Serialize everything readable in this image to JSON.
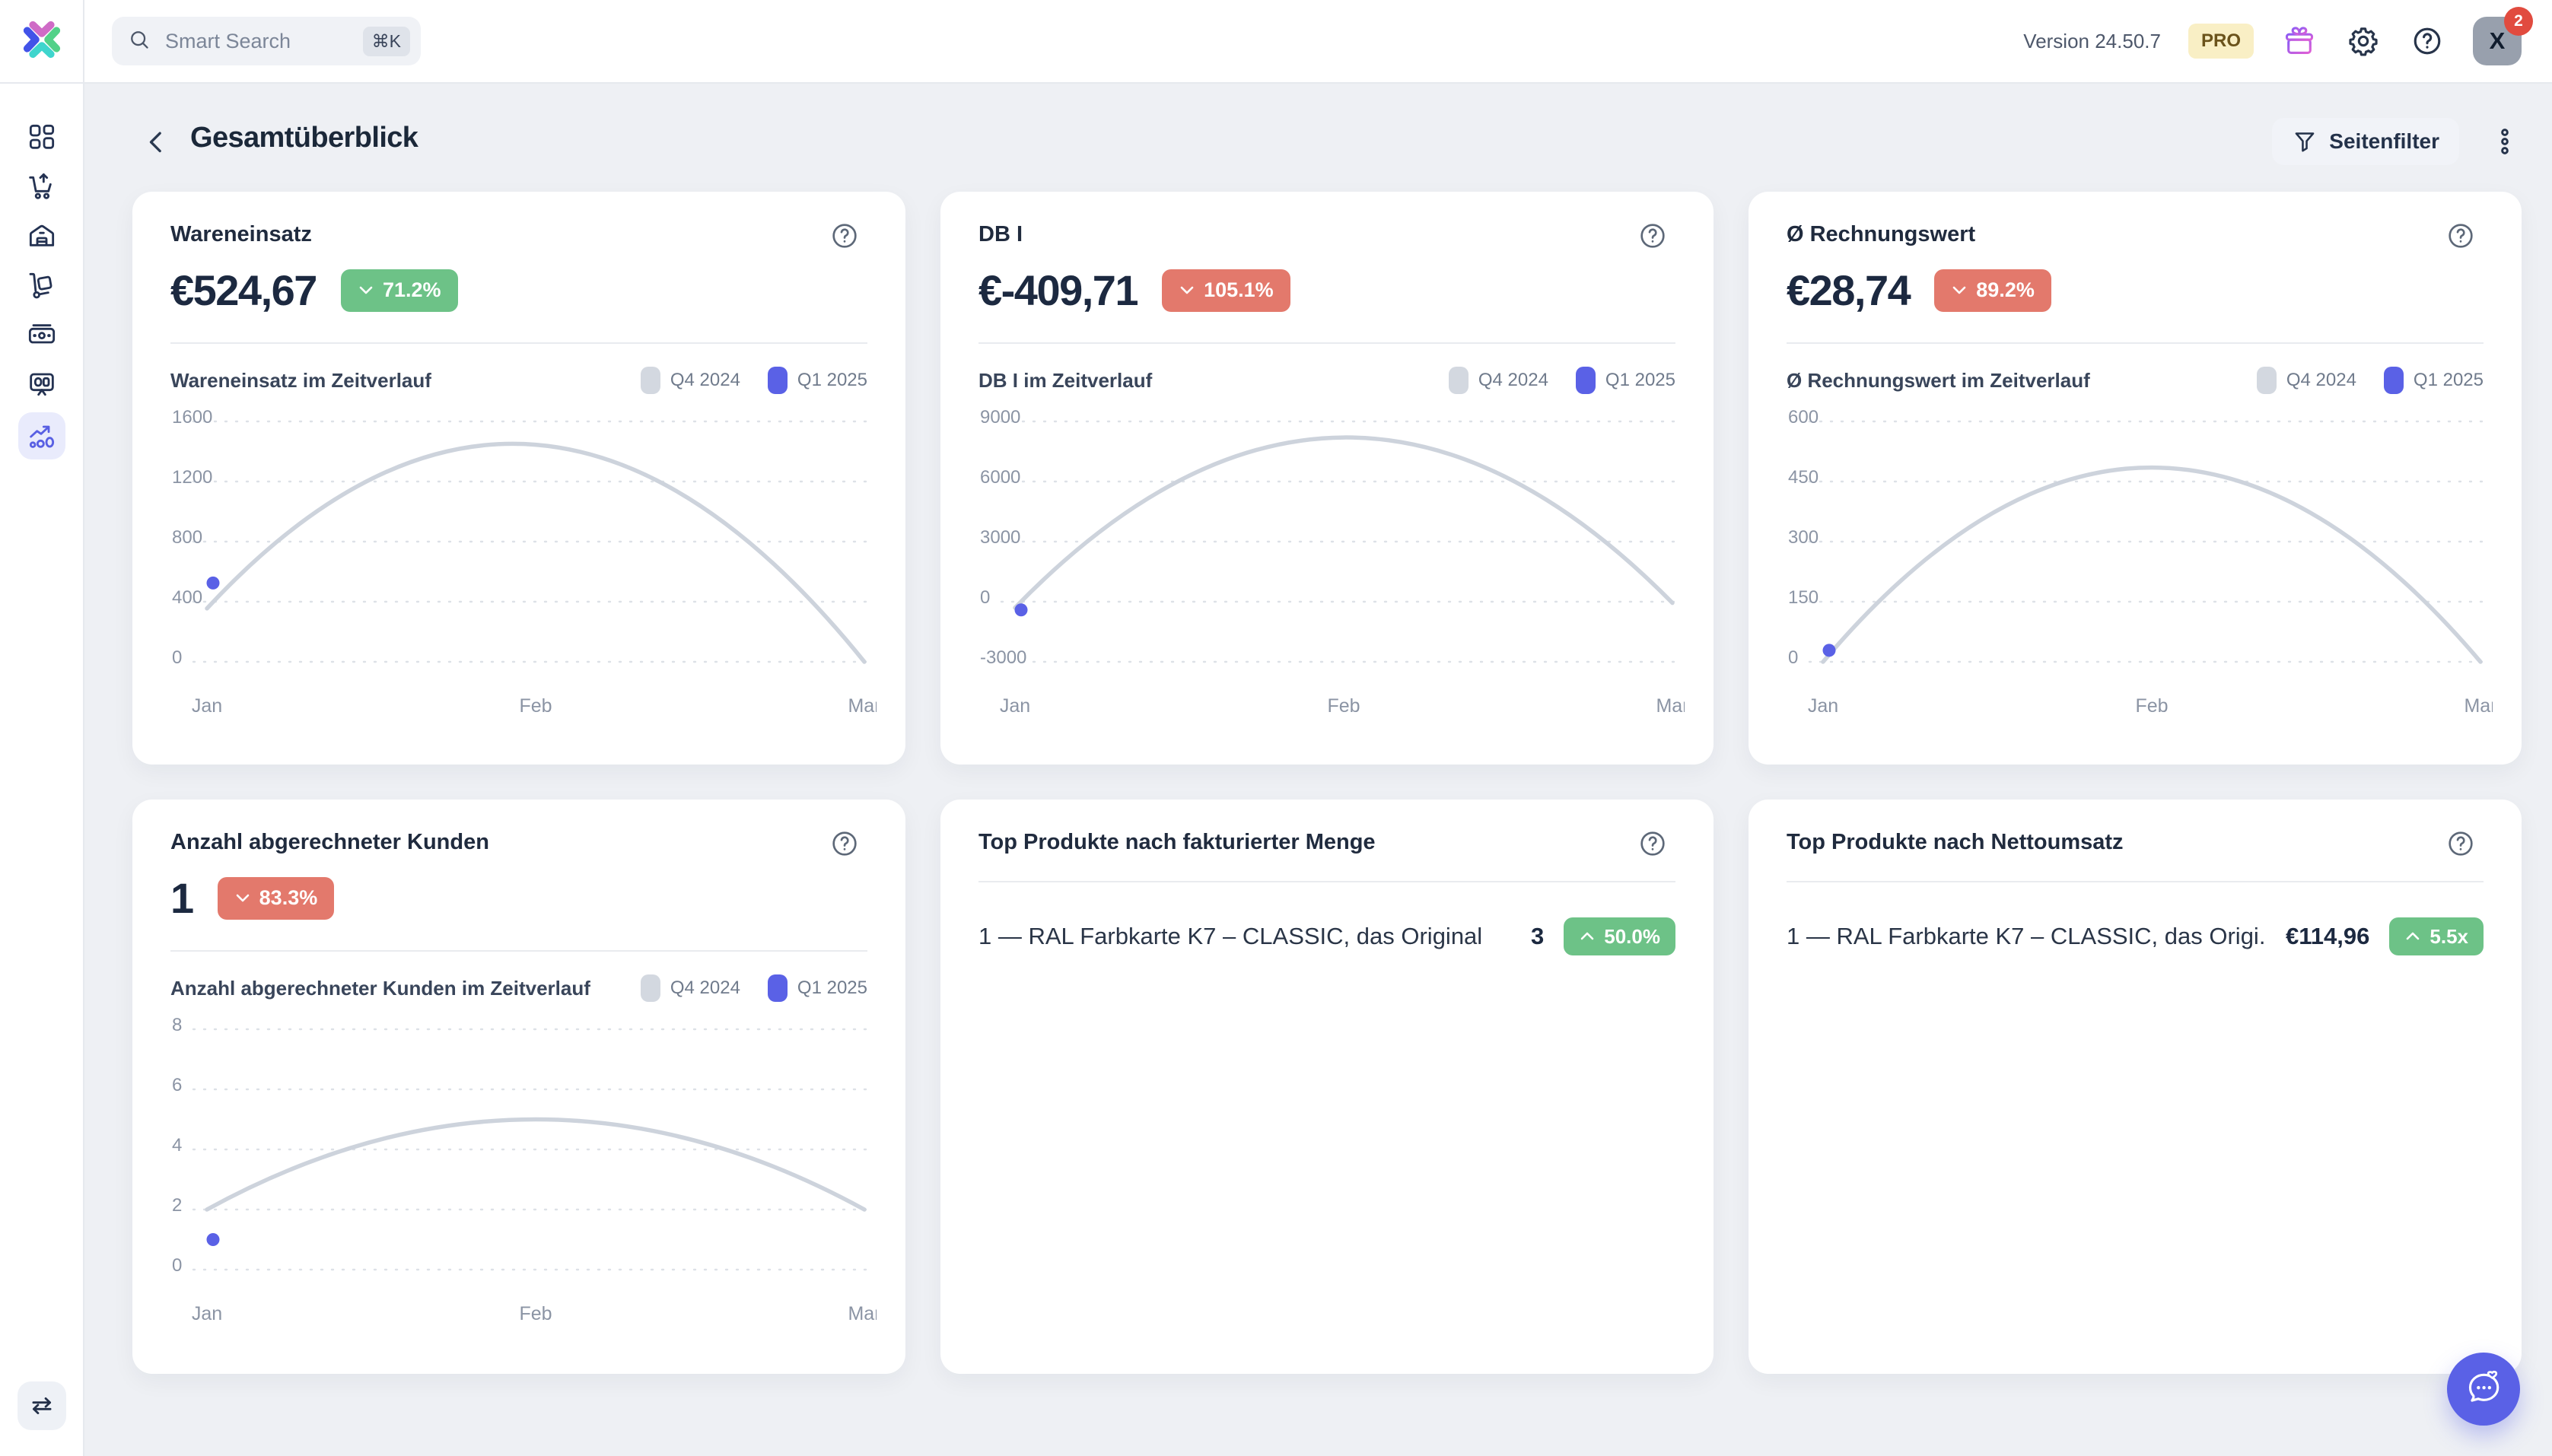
{
  "colors": {
    "accent": "#5a61e6",
    "green": "#6dc287",
    "red": "#e3796c",
    "series_q4": "#d3d8e0",
    "series_q1": "#5a61e6",
    "curve": "#cdd3dc",
    "grid": "#dde1e7",
    "axis_text": "#8b94a4"
  },
  "topbar": {
    "search_placeholder": "Smart Search",
    "search_shortcut": "⌘K",
    "version": "Version 24.50.7",
    "pro_label": "PRO",
    "avatar_initial": "X",
    "notification_count": "2",
    "icons": [
      "gift-icon",
      "gear-icon",
      "help-icon"
    ]
  },
  "sidebar": {
    "items": [
      {
        "icon": "dashboard-icon",
        "active": false
      },
      {
        "icon": "cart-up-icon",
        "active": false
      },
      {
        "icon": "warehouse-icon",
        "active": false
      },
      {
        "icon": "hand-truck-icon",
        "active": false
      },
      {
        "icon": "banknote-icon",
        "active": false
      },
      {
        "icon": "presentation-icon",
        "active": false
      },
      {
        "icon": "analytics-icon",
        "active": true
      }
    ],
    "bottom_icon": "swap-arrows-icon"
  },
  "header": {
    "title": "Gesamtüberblick",
    "filter_label": "Seitenfilter"
  },
  "legend": [
    "Q4 2024",
    "Q1 2025"
  ],
  "chart_data": [
    {
      "type": "line",
      "title": "Wareneinsatz im Zeitverlauf",
      "x": [
        "Jan",
        "Feb",
        "Mar"
      ],
      "ylim": [
        0,
        1600
      ],
      "yticks": [
        1600,
        1200,
        800,
        400,
        0
      ],
      "grid": true,
      "legend_position": "top-right",
      "series": [
        {
          "name": "Q4 2024",
          "style": "smooth-line",
          "values": [
            355,
            1445,
            0
          ]
        },
        {
          "name": "Q1 2025",
          "style": "point",
          "values": [
            524.67,
            null,
            null
          ]
        }
      ]
    },
    {
      "type": "line",
      "title": "DB I im Zeitverlauf",
      "x": [
        "Jan",
        "Feb",
        "Mar"
      ],
      "ylim": [
        -3000,
        9000
      ],
      "yticks": [
        9000,
        6000,
        3000,
        0,
        -3000
      ],
      "grid": true,
      "legend_position": "top-right",
      "series": [
        {
          "name": "Q4 2024",
          "style": "smooth-line",
          "values": [
            -300,
            8200,
            -60
          ]
        },
        {
          "name": "Q1 2025",
          "style": "point",
          "values": [
            -409.71,
            null,
            null
          ]
        }
      ]
    },
    {
      "type": "line",
      "title": "Ø Rechnungswert im Zeitverlauf",
      "x": [
        "Jan",
        "Feb",
        "Mar"
      ],
      "ylim": [
        0,
        600
      ],
      "yticks": [
        600,
        450,
        300,
        150,
        0
      ],
      "grid": true,
      "legend_position": "top-right",
      "series": [
        {
          "name": "Q4 2024",
          "style": "smooth-line",
          "values": [
            0,
            485,
            0
          ]
        },
        {
          "name": "Q1 2025",
          "style": "point",
          "values": [
            28.74,
            null,
            null
          ]
        }
      ]
    },
    {
      "type": "line",
      "title": "Anzahl abgerechneter Kunden im Zeitverlauf",
      "x": [
        "Jan",
        "Feb",
        "Mar"
      ],
      "ylim": [
        0,
        8
      ],
      "yticks": [
        8,
        6,
        4,
        2,
        0
      ],
      "grid": true,
      "legend_position": "top-right",
      "series": [
        {
          "name": "Q4 2024",
          "style": "smooth-line",
          "values": [
            2,
            5,
            2
          ]
        },
        {
          "name": "Q1 2025",
          "style": "point",
          "values": [
            1,
            null,
            null
          ]
        }
      ]
    }
  ],
  "cards": [
    {
      "type": "kpi",
      "title": "Wareneinsatz",
      "value": "€524,67",
      "badge": {
        "label": "71.2%",
        "direction": "down",
        "tone": "green"
      },
      "chart": 0
    },
    {
      "type": "kpi",
      "title": "DB I",
      "value": "€-409,71",
      "badge": {
        "label": "105.1%",
        "direction": "down",
        "tone": "red"
      },
      "chart": 1
    },
    {
      "type": "kpi",
      "title": "Ø Rechnungswert",
      "value": "€28,74",
      "badge": {
        "label": "89.2%",
        "direction": "down",
        "tone": "red"
      },
      "chart": 2
    },
    {
      "type": "kpi",
      "title": "Anzahl abgerechneter Kunden",
      "value": "1",
      "badge": {
        "label": "83.3%",
        "direction": "down",
        "tone": "red"
      },
      "chart": 3
    },
    {
      "type": "list",
      "title": "Top Produkte nach fakturierter Menge",
      "rows": [
        {
          "label": "1 — RAL Farbkarte K7 – CLASSIC, das Original",
          "value": "3",
          "badge": {
            "label": "50.0%",
            "direction": "up",
            "tone": "green"
          }
        }
      ]
    },
    {
      "type": "list",
      "title": "Top Produkte nach Nettoumsatz",
      "rows": [
        {
          "label": "1 — RAL Farbkarte K7 – CLASSIC, das Origi...",
          "value": "€114,96",
          "badge": {
            "label": "5.5x",
            "direction": "up",
            "tone": "green"
          }
        }
      ]
    }
  ]
}
